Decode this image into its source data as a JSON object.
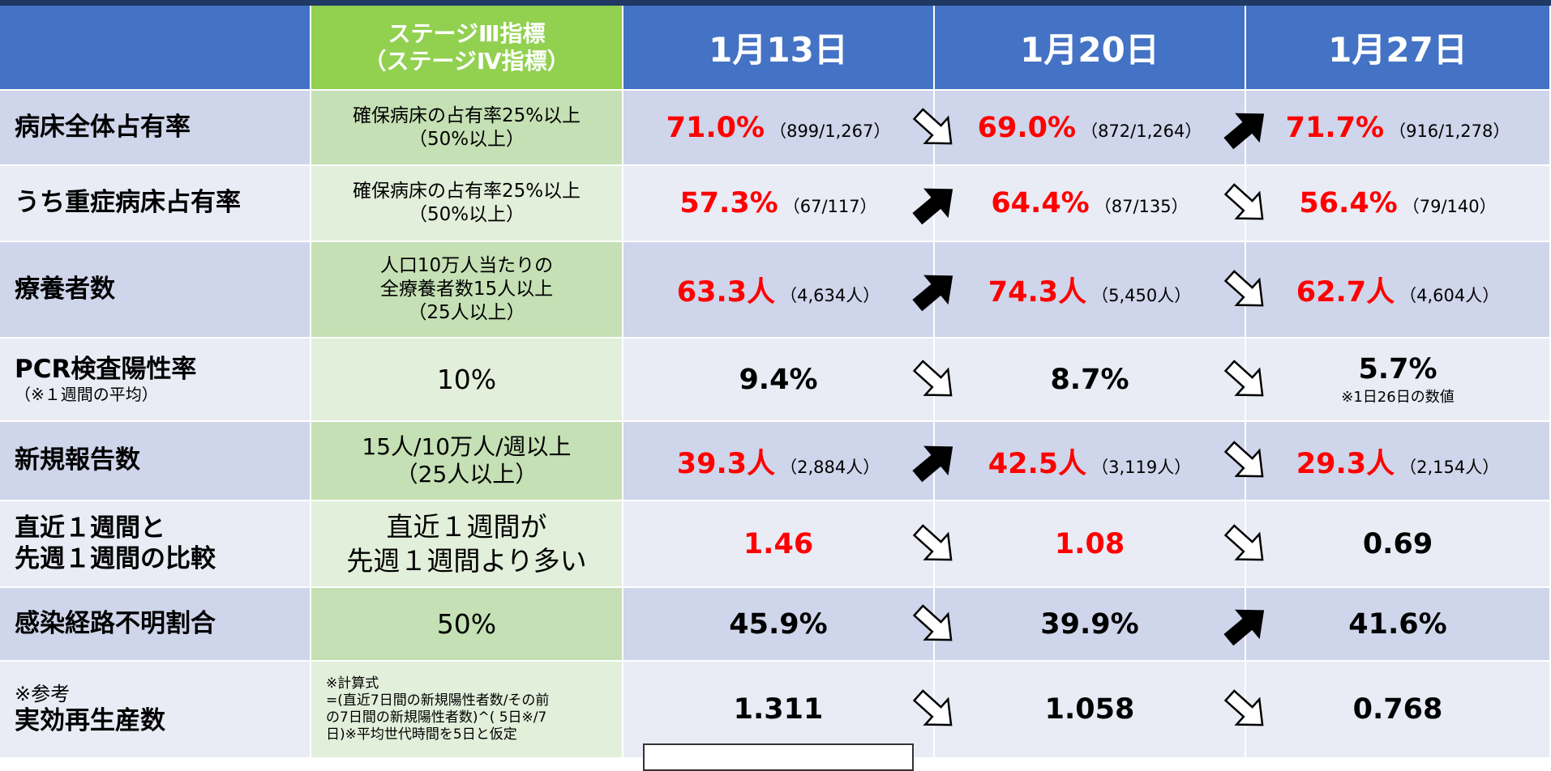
{
  "table": {
    "header": {
      "criterion": [
        "ステージⅢ指標",
        "（ステージⅣ指標）"
      ],
      "dates": [
        "1月13日",
        "1月20日",
        "1月27日"
      ]
    },
    "rows": [
      {
        "label": {
          "lines": [
            "病床全体占有率"
          ]
        },
        "criterion": {
          "lines": [
            "確保病床の占有率25%以上",
            "（50%以上）"
          ],
          "size": "s"
        },
        "bg": "dark",
        "values": [
          {
            "main": "71.0%",
            "sub": "（899/1,267）",
            "color": "red"
          },
          {
            "main": "69.0%",
            "sub": "（872/1,264）",
            "color": "red"
          },
          {
            "main": "71.7%",
            "sub": "（916/1,278）",
            "color": "red"
          }
        ],
        "trend": [
          "down",
          "up"
        ]
      },
      {
        "label": {
          "lines": [
            "うち重症病床占有率"
          ]
        },
        "criterion": {
          "lines": [
            "確保病床の占有率25%以上",
            "（50%以上）"
          ],
          "size": "s"
        },
        "bg": "light",
        "values": [
          {
            "main": "57.3%",
            "sub": "（67/117）",
            "color": "red"
          },
          {
            "main": "64.4%",
            "sub": "（87/135）",
            "color": "red"
          },
          {
            "main": "56.4%",
            "sub": "（79/140）",
            "color": "red"
          }
        ],
        "trend": [
          "up",
          "down"
        ]
      },
      {
        "label": {
          "lines": [
            "療養者数"
          ]
        },
        "criterion": {
          "lines": [
            "人口10万人当たりの",
            "全療養者数15人以上",
            "（25人以上）"
          ],
          "size": "s"
        },
        "bg": "dark",
        "values": [
          {
            "main": "63.3人",
            "sub": "（4,634人）",
            "color": "red"
          },
          {
            "main": "74.3人",
            "sub": "（5,450人）",
            "color": "red"
          },
          {
            "main": "62.7人",
            "sub": "（4,604人）",
            "color": "red"
          }
        ],
        "trend": [
          "up",
          "down"
        ]
      },
      {
        "label": {
          "lines": [
            "PCR検査陽性率"
          ],
          "note": "（※１週間の平均）"
        },
        "criterion": {
          "lines": [
            "10%"
          ],
          "size": "l"
        },
        "bg": "light",
        "values": [
          {
            "main": "9.4%",
            "color": "black"
          },
          {
            "main": "8.7%",
            "color": "black"
          },
          {
            "main": "5.7%",
            "note": "※1日26日の数値",
            "color": "black"
          }
        ],
        "trend": [
          "down",
          "down"
        ]
      },
      {
        "label": {
          "lines": [
            "新規報告数"
          ]
        },
        "criterion": {
          "lines": [
            "15人/10万人/週以上",
            "（25人以上）"
          ],
          "size": "m"
        },
        "bg": "dark",
        "values": [
          {
            "main": "39.3人",
            "sub": "（2,884人）",
            "color": "red"
          },
          {
            "main": "42.5人",
            "sub": "（3,119人）",
            "color": "red"
          },
          {
            "main": "29.3人",
            "sub": "（2,154人）",
            "color": "red"
          }
        ],
        "trend": [
          "up",
          "down"
        ]
      },
      {
        "label": {
          "lines": [
            "直近１週間と",
            "先週１週間の比較"
          ]
        },
        "criterion": {
          "lines": [
            "直近１週間が",
            "先週１週間より多い"
          ],
          "size": "l"
        },
        "bg": "light",
        "values": [
          {
            "main": "1.46",
            "color": "red"
          },
          {
            "main": "1.08",
            "color": "red"
          },
          {
            "main": "0.69",
            "color": "black"
          }
        ],
        "trend": [
          "down",
          "down"
        ]
      },
      {
        "label": {
          "lines": [
            "感染経路不明割合"
          ]
        },
        "criterion": {
          "lines": [
            "50%"
          ],
          "size": "l"
        },
        "bg": "dark",
        "values": [
          {
            "main": "45.9%",
            "color": "black"
          },
          {
            "main": "39.9%",
            "color": "black"
          },
          {
            "main": "41.6%",
            "color": "black"
          }
        ],
        "trend": [
          "down",
          "up"
        ]
      },
      {
        "label": {
          "pre": "※参考",
          "lines": [
            "実効再生産数"
          ]
        },
        "criterion": {
          "lines": [
            "※計算式",
            "=(直近7日間の新規陽性者数/その前",
            "の7日間の新規陽性者数)^( 5日※/7",
            "日)※平均世代時間を5日と仮定"
          ],
          "size": "xs"
        },
        "bg": "light",
        "values": [
          {
            "main": "1.311",
            "color": "black"
          },
          {
            "main": "1.058",
            "color": "black"
          },
          {
            "main": "0.768",
            "color": "black"
          }
        ],
        "trend": [
          "down",
          "down"
        ]
      }
    ]
  }
}
